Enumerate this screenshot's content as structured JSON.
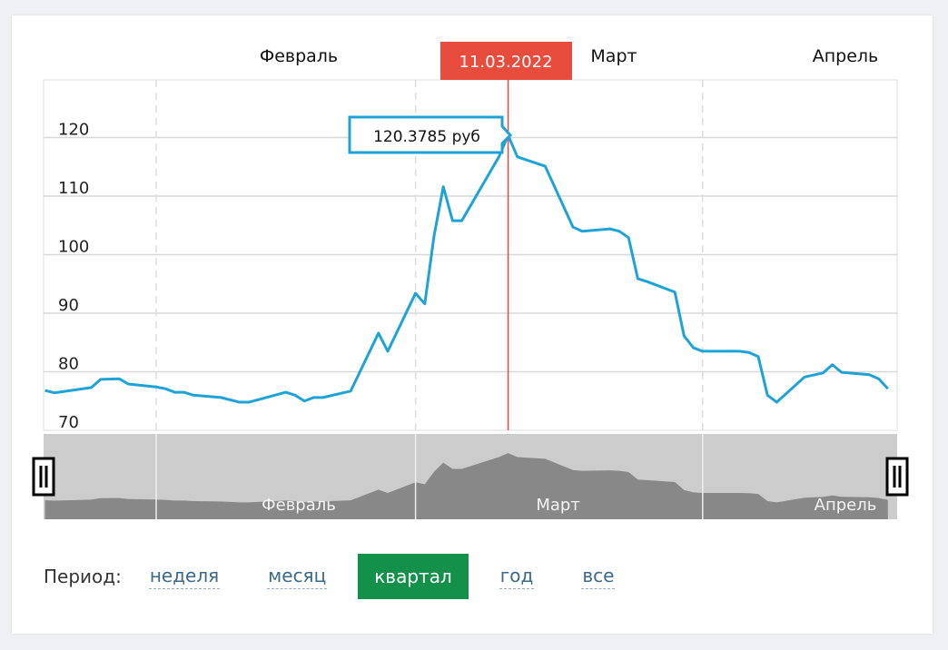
{
  "chart_data": {
    "type": "line",
    "ylim": [
      70,
      125
    ],
    "yticks": [
      70,
      80,
      90,
      100,
      110,
      120
    ],
    "xlim": [
      "2022-01-20",
      "2022-04-21"
    ],
    "month_labels": [
      {
        "label": "Февраль",
        "date": "2022-02-01"
      },
      {
        "label": "Март",
        "date": "2022-03-01"
      },
      {
        "label": "Апрель",
        "date": "2022-04-01"
      }
    ],
    "grid": true,
    "line_color": "#1fa3d6",
    "series": [
      {
        "x": [
          "2022-01-20",
          "2022-01-21",
          "2022-01-25",
          "2022-01-26",
          "2022-01-28",
          "2022-01-29",
          "2022-02-01",
          "2022-02-02",
          "2022-02-03",
          "2022-02-04",
          "2022-02-05",
          "2022-02-08",
          "2022-02-10",
          "2022-02-11",
          "2022-02-15",
          "2022-02-16",
          "2022-02-17",
          "2022-02-18",
          "2022-02-19",
          "2022-02-22",
          "2022-02-25",
          "2022-02-26",
          "2022-03-01",
          "2022-03-02",
          "2022-03-03",
          "2022-03-04",
          "2022-03-05",
          "2022-03-06",
          "2022-03-10",
          "2022-03-11",
          "2022-03-12",
          "2022-03-15",
          "2022-03-18",
          "2022-03-19",
          "2022-03-22",
          "2022-03-23",
          "2022-03-24",
          "2022-03-25",
          "2022-03-26",
          "2022-03-29",
          "2022-03-30",
          "2022-03-31",
          "2022-04-01",
          "2022-04-05",
          "2022-04-06",
          "2022-04-07",
          "2022-04-08",
          "2022-04-09",
          "2022-04-12",
          "2022-04-14",
          "2022-04-15",
          "2022-04-16",
          "2022-04-19",
          "2022-04-20",
          "2022-04-21"
        ],
        "y": [
          76.8,
          76.4,
          77.3,
          78.7,
          78.8,
          77.9,
          77.4,
          77.1,
          76.5,
          76.5,
          76.0,
          75.6,
          74.8,
          74.8,
          76.5,
          76.0,
          75.0,
          75.6,
          75.6,
          76.7,
          86.6,
          83.5,
          93.4,
          91.6,
          103.2,
          111.6,
          105.8,
          105.8,
          116.7,
          120.3785,
          116.7,
          115.1,
          104.7,
          104.0,
          104.4,
          104.0,
          102.9,
          95.9,
          95.4,
          93.6,
          86.1,
          84.1,
          83.5,
          83.5,
          83.3,
          82.6,
          76.0,
          74.8,
          79.1,
          79.8,
          81.2,
          79.9,
          79.5,
          78.8,
          77.1
        ]
      }
    ],
    "crosshair": {
      "date_label": "11.03.2022",
      "value_label": "120.3785 руб",
      "date": "2022-03-11",
      "value": 120.3785,
      "color": "#e84c3d"
    },
    "navigator": {
      "range": "full",
      "background": "#cccccc",
      "area_color": "#888888"
    }
  },
  "period": {
    "label": "Период:",
    "options": [
      "неделя",
      "месяц",
      "квартал",
      "год",
      "все"
    ],
    "selected": "квартал",
    "accent": "#13914a"
  }
}
